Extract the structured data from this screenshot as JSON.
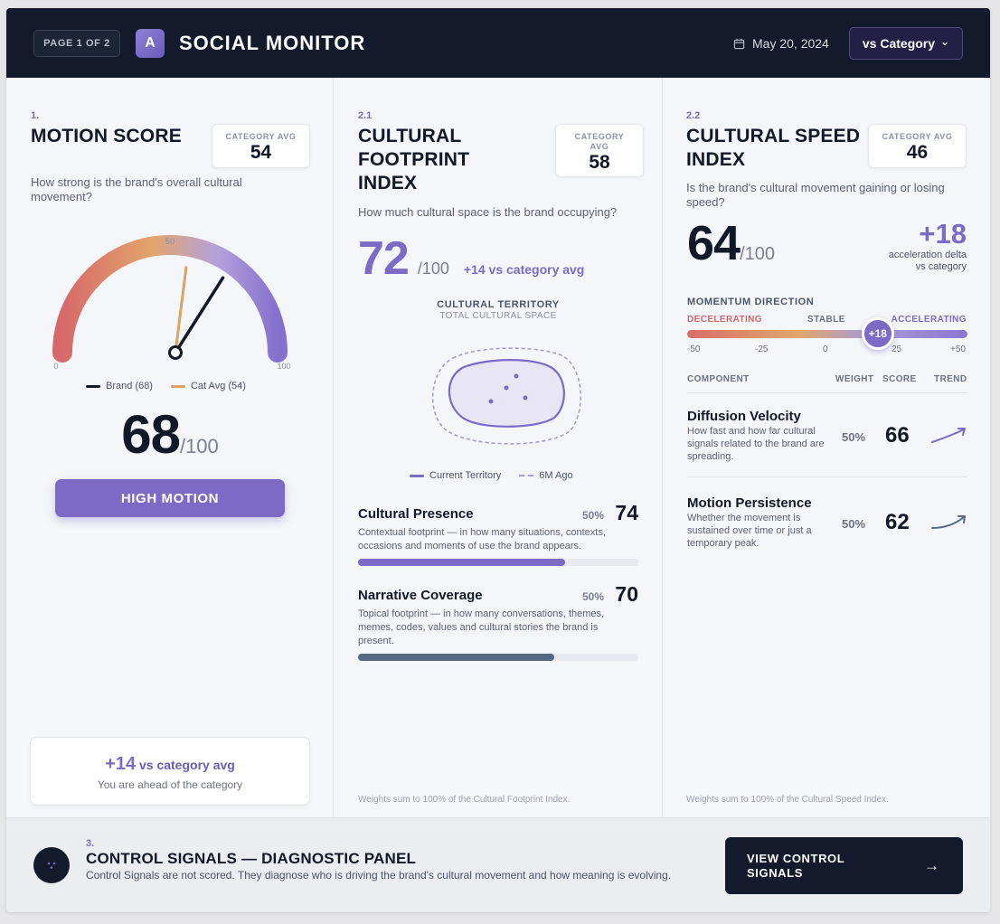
{
  "header": {
    "page_indicator": "PAGE 1 OF 2",
    "logo_letter": "A",
    "title": "SOCIAL MONITOR",
    "date": "May 20, 2024",
    "compare_label": "vs Category",
    "compare_caret": "⌄"
  },
  "motion": {
    "num": "1.",
    "title": "MOTION SCORE",
    "category_avg_label": "CATEGORY AVG",
    "category_avg": "54",
    "question": "How strong is the brand's overall cultural movement?",
    "gauge": {
      "min_label": "0",
      "mid_label": "50",
      "max_label": "100",
      "brand_value": 68,
      "cat_value": 54,
      "legend_brand": "Brand (68)",
      "legend_cat": "Cat Avg (54)",
      "brand_color": "#111827",
      "cat_color": "#d9a36a"
    },
    "score": "68",
    "denom": "/100",
    "level_label": "HIGH MOTION",
    "delta": "+14",
    "delta_label": " vs category avg",
    "delta_sub": "You are ahead of the category"
  },
  "footprint": {
    "num": "2.1",
    "title_l1": "CULTURAL",
    "title_l2": "FOOTPRINT",
    "title_l3": "INDEX",
    "category_avg_label_l1": "CATEGORY",
    "category_avg_label_l2": "AVG",
    "category_avg": "58",
    "question": "How much cultural space is the brand occupying?",
    "score": "72",
    "denom": "/100",
    "delta_text": "+14 vs category avg",
    "territory_title": "CULTURAL TERRITORY",
    "territory_sub": "TOTAL CULTURAL SPACE",
    "legend_current": "Current Territory",
    "legend_past": "6M Ago",
    "metrics": [
      {
        "name": "Cultural Presence",
        "weight": "50%",
        "score": "74",
        "value": 74,
        "color": "#7c6ac7",
        "desc": "Contextual footprint — in how many situations, contexts, occasions and moments of use the brand appears."
      },
      {
        "name": "Narrative Coverage",
        "weight": "50%",
        "score": "70",
        "value": 70,
        "color": "#556987",
        "desc": "Topical footprint — in how many conversations, themes, memes, codes, values and cultural stories the brand is present."
      }
    ],
    "footnote": "Weights sum to 100% of the Cultural Footprint Index."
  },
  "speed": {
    "num": "2.2",
    "title_l1": "CULTURAL SPEED",
    "title_l2": "INDEX",
    "category_avg_label": "CATEGORY AVG",
    "category_avg": "46",
    "question": "Is the brand's cultural movement gaining or losing speed?",
    "score": "64",
    "denom": "/100",
    "accel_value": "+18",
    "accel_l1": "acceleration delta",
    "accel_l2": "vs category",
    "momentum_title": "MOMENTUM DIRECTION",
    "momentum_left": "DECELERATING",
    "momentum_mid": "STABLE",
    "momentum_right": "ACCELERATING",
    "momentum_value": 18,
    "momentum_badge": "+18",
    "ticks": [
      "-50",
      "-25",
      "0",
      "25",
      "+50"
    ],
    "col_component": "COMPONENT",
    "col_weight": "WEIGHT",
    "col_score": "SCORE",
    "col_trend": "TREND",
    "components": [
      {
        "name": "Diffusion Velocity",
        "desc": "How fast and how far cultural signals related to the brand are spreading.",
        "weight": "50%",
        "score": "66",
        "trend_color": "#7c6ac7"
      },
      {
        "name": "Motion Persistence",
        "desc": "Whether the movement is sustained over time or just a temporary peak.",
        "weight": "50%",
        "score": "62",
        "trend_color": "#556987"
      }
    ],
    "footnote": "Weights sum to 100% of the Cultural Speed Index."
  },
  "control": {
    "num": "3.",
    "title": "CONTROL SIGNALS — DIAGNOSTIC PANEL",
    "desc": "Control Signals are not scored. They diagnose who is driving the brand's cultural movement and how meaning is evolving.",
    "button_l1": "VIEW CONTROL",
    "button_l2": "SIGNALS",
    "button_arrow": "→"
  }
}
